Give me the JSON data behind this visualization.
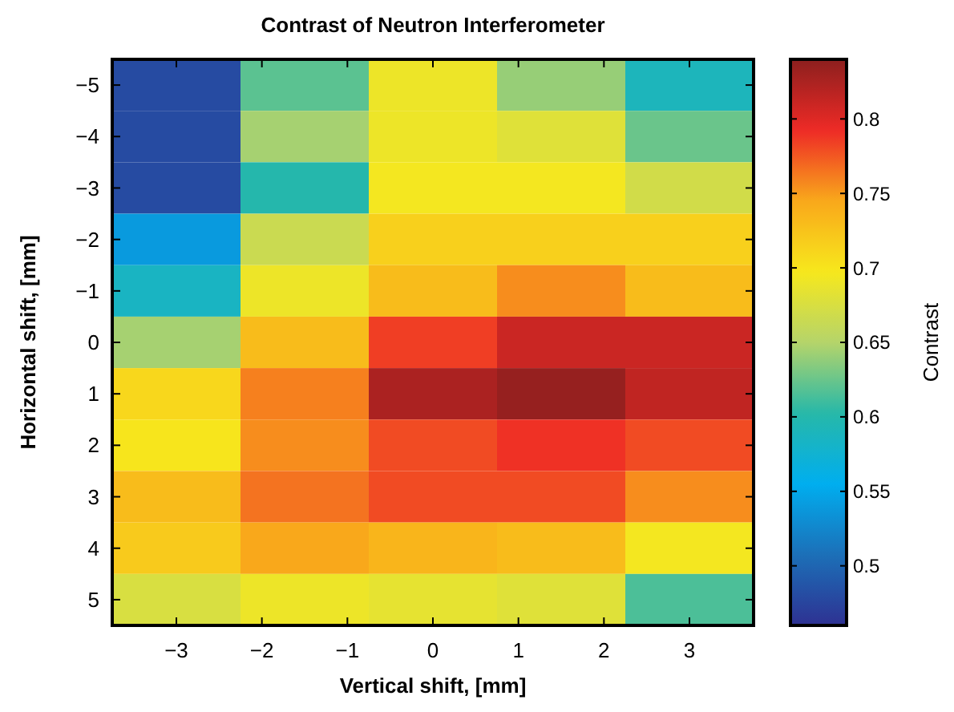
{
  "chart_data": {
    "type": "heatmap",
    "title": "Contrast of Neutron Interferometer",
    "xlabel": "Vertical shift, [mm]",
    "ylabel": "Horizontal shift, [mm]",
    "clabel": "Contrast",
    "x": [
      -3,
      -1.5,
      0,
      1.5,
      3
    ],
    "xlim": [
      -3.75,
      3.75
    ],
    "xticks": [
      {
        "value": -3,
        "label": "−3"
      },
      {
        "value": -2,
        "label": "−2"
      },
      {
        "value": -1,
        "label": "−1"
      },
      0,
      1,
      2,
      3
    ],
    "y_categories": [
      "−5",
      "−4",
      "−3",
      "−2",
      "−1",
      "0",
      "1",
      "2",
      "3",
      "4",
      "5"
    ],
    "cells": [
      [
        0.48,
        0.62,
        0.69,
        0.64,
        0.59
      ],
      [
        0.48,
        0.645,
        0.69,
        0.68,
        0.625
      ],
      [
        0.48,
        0.6,
        0.695,
        0.695,
        0.67
      ],
      [
        0.54,
        0.665,
        0.715,
        0.715,
        0.715
      ],
      [
        0.585,
        0.69,
        0.73,
        0.755,
        0.73
      ],
      [
        0.645,
        0.73,
        0.785,
        0.81,
        0.81
      ],
      [
        0.71,
        0.76,
        0.825,
        0.835,
        0.815
      ],
      [
        0.7,
        0.755,
        0.78,
        0.79,
        0.78
      ],
      [
        0.73,
        0.765,
        0.78,
        0.78,
        0.755
      ],
      [
        0.72,
        0.745,
        0.735,
        0.73,
        0.695
      ],
      [
        0.675,
        0.69,
        0.685,
        0.68,
        0.615
      ]
    ],
    "clim": [
      0.46,
      0.84
    ],
    "cticks": [
      0.5,
      0.55,
      0.6,
      0.65,
      0.7,
      0.75,
      0.8
    ]
  }
}
